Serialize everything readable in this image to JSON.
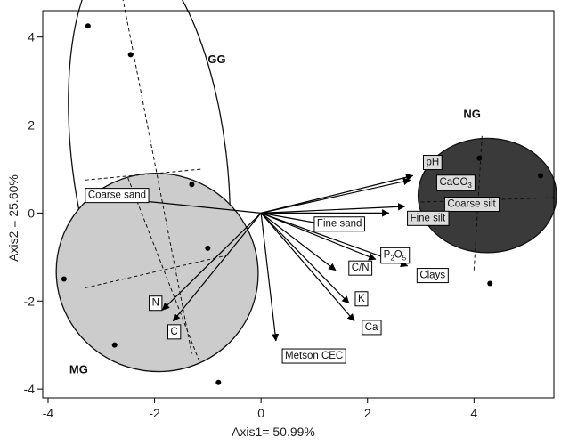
{
  "chart_data": {
    "type": "scatter",
    "xlabel": "Axis1= 50.99%",
    "ylabel": "Axis2 = 25.60%",
    "xlim": [
      -4.1,
      5.5
    ],
    "ylim": [
      -4.2,
      4.6
    ],
    "xticks": [
      -4,
      -2,
      0,
      2,
      4
    ],
    "yticks": [
      -4,
      -2,
      0,
      2,
      4
    ],
    "grid": false,
    "groups": [
      {
        "name": "GG",
        "fill": "none",
        "stroke": "#111111",
        "ellipse": {
          "cx": -2.1,
          "cy": 1.2,
          "rx": 1.45,
          "ry": 4.8,
          "rotation_deg": -7
        },
        "axes": [
          {
            "x1": -2.6,
            "y1": 4.9,
            "x2": -1.3,
            "y2": -3.2
          },
          {
            "x1": -3.3,
            "y1": 0.75,
            "x2": -1.1,
            "y2": 1.0
          }
        ],
        "label": {
          "text": "GG",
          "x": -1.0,
          "y": 3.5
        },
        "points": [
          [
            -3.25,
            4.25
          ],
          [
            -2.45,
            3.6
          ],
          [
            -1.3,
            0.65
          ],
          [
            -1.0,
            -0.8
          ]
        ]
      },
      {
        "name": "MG",
        "fill": "#cccccc",
        "stroke": "#111111",
        "ellipse": {
          "cx": -1.95,
          "cy": -1.35,
          "rx": 1.9,
          "ry": 2.25,
          "rotation_deg": 18
        },
        "axes": [
          {
            "x1": -3.3,
            "y1": -1.7,
            "x2": -0.6,
            "y2": -0.95
          },
          {
            "x1": -2.5,
            "y1": 0.8,
            "x2": -1.15,
            "y2": -3.4
          }
        ],
        "label": {
          "text": "MG",
          "x": -3.6,
          "y": -3.55
        },
        "points": [
          [
            -3.7,
            -1.5
          ],
          [
            -2.75,
            -3.0
          ],
          [
            -0.8,
            -3.85
          ]
        ]
      },
      {
        "name": "NG",
        "fill": "#3a3a3a",
        "stroke": "#111111",
        "ellipse": {
          "cx": 4.25,
          "cy": 0.4,
          "rx": 1.3,
          "ry": 1.3,
          "rotation_deg": 0
        },
        "axes": [
          {
            "x1": 3.0,
            "y1": 0.25,
            "x2": 5.5,
            "y2": 0.35
          },
          {
            "x1": 4.15,
            "y1": 1.75,
            "x2": 4.0,
            "y2": -1.3
          }
        ],
        "label": {
          "text": "NG",
          "x": 3.8,
          "y": 2.25
        },
        "points": [
          [
            4.1,
            1.25
          ],
          [
            5.25,
            0.85
          ],
          [
            4.3,
            -1.6
          ]
        ]
      }
    ],
    "arrows": [
      {
        "label": "Coarse sand",
        "x": -2.85,
        "y": 0.35,
        "lx": -3.25,
        "ly": 0.4,
        "shaded": false
      },
      {
        "label": "N",
        "x": -1.85,
        "y": -2.2,
        "lx": -2.05,
        "ly": -2.05,
        "shaded": false
      },
      {
        "label": "C",
        "x": -1.65,
        "y": -2.45,
        "lx": -1.7,
        "ly": -2.7,
        "shaded": false
      },
      {
        "label": "Metson CEC",
        "x": 0.28,
        "y": -2.9,
        "lx": 0.45,
        "ly": -3.25,
        "shaded": false
      },
      {
        "label": "pH",
        "x": 2.85,
        "y": 0.85,
        "lx": 3.1,
        "ly": 1.15,
        "shaded": true
      },
      {
        "label": "CaCO3",
        "x": 2.8,
        "y": 0.75,
        "lx": 3.35,
        "ly": 0.7,
        "shaded": true
      },
      {
        "label": "Coarse silt",
        "x": 2.7,
        "y": 0.15,
        "lx": 3.5,
        "ly": 0.2,
        "shaded": true
      },
      {
        "label": "Fine silt",
        "x": 2.4,
        "y": 0.0,
        "lx": 2.8,
        "ly": -0.12,
        "shaded": true
      },
      {
        "label": "Fine sand",
        "x": 1.3,
        "y": -0.28,
        "lx": 1.05,
        "ly": -0.25,
        "shaded": false
      },
      {
        "label": "P2O5",
        "x": 2.15,
        "y": -1.05,
        "lx": 2.3,
        "ly": -0.95,
        "shaded": false
      },
      {
        "label": "Clays",
        "x": 2.75,
        "y": -1.2,
        "lx": 2.98,
        "ly": -1.42,
        "shaded": false
      },
      {
        "label": "C/N",
        "x": 1.4,
        "y": -1.3,
        "lx": 1.7,
        "ly": -1.25,
        "shaded": false
      },
      {
        "label": "K",
        "x": 1.65,
        "y": -2.05,
        "lx": 1.82,
        "ly": -1.95,
        "shaded": false
      },
      {
        "label": "Ca",
        "x": 1.75,
        "y": -2.45,
        "lx": 1.95,
        "ly": -2.6,
        "shaded": false
      }
    ]
  }
}
